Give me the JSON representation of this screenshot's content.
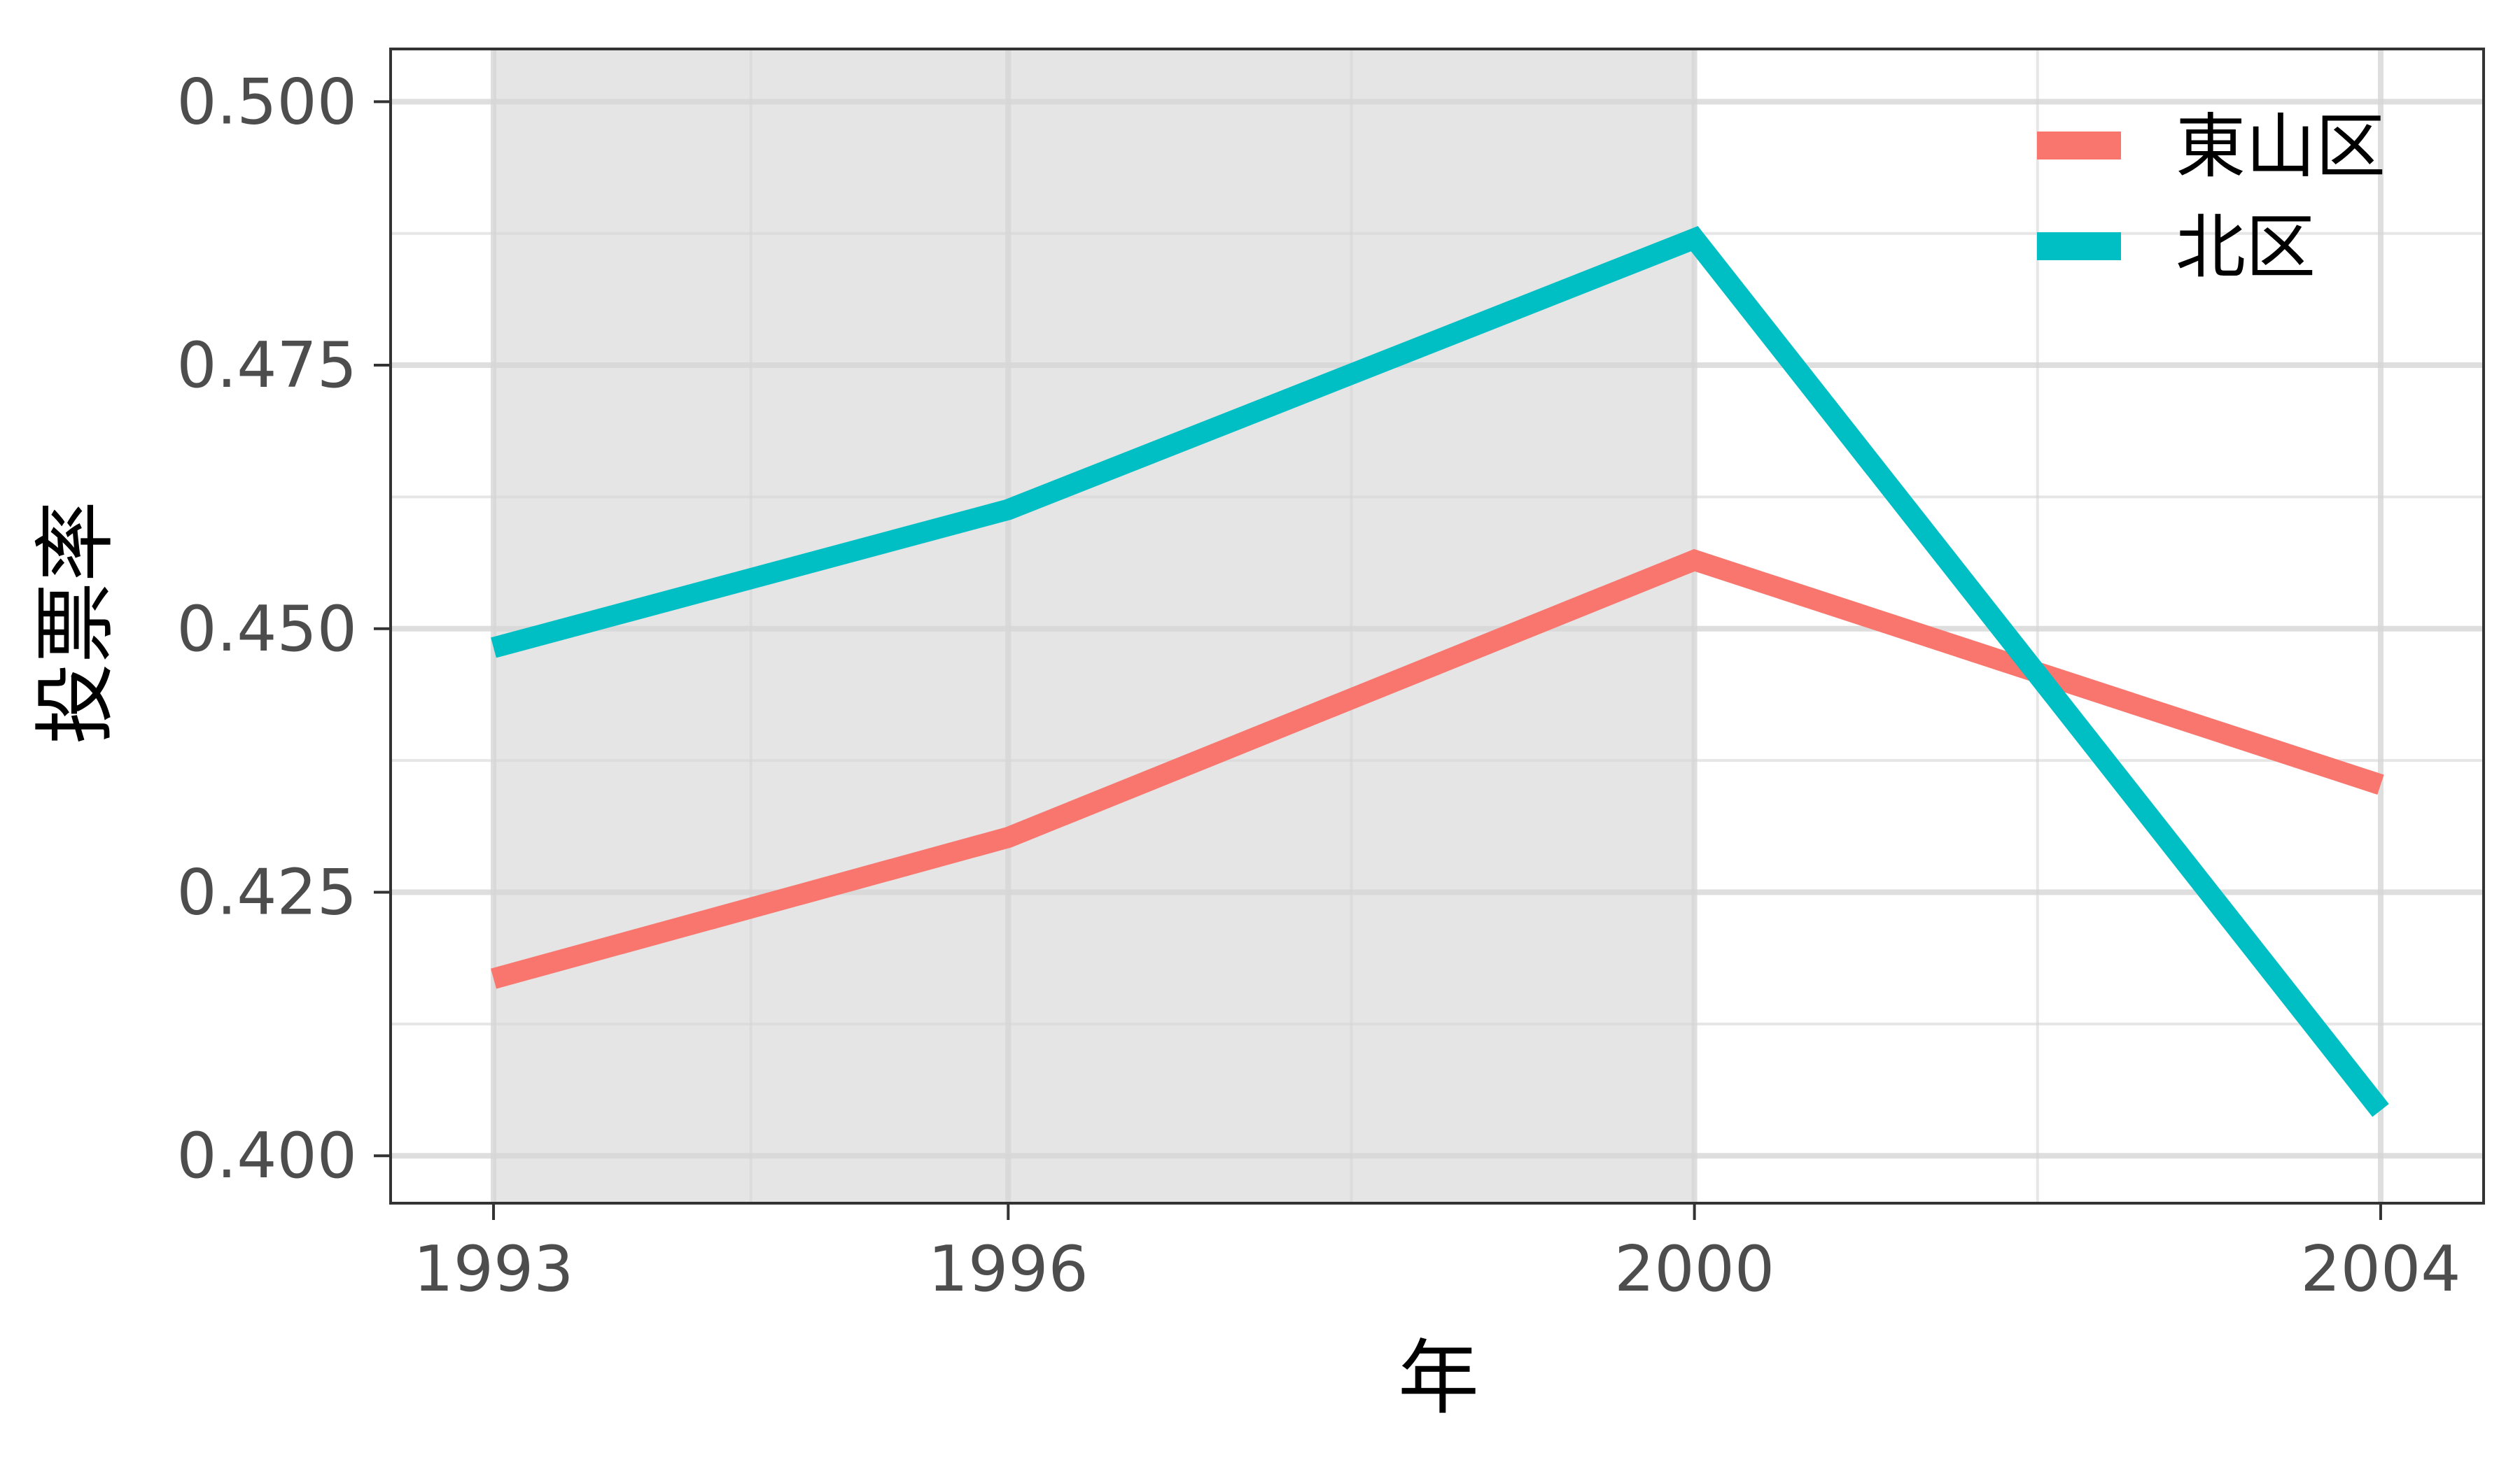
{
  "chart_data": {
    "type": "line",
    "title": "",
    "xlabel": "年",
    "ylabel": "投票率",
    "x": [
      1993,
      1996,
      2000,
      2004
    ],
    "xticks": [
      "1993",
      "1996",
      "2000",
      "2004"
    ],
    "xlim": [
      1992.4,
      2004.6
    ],
    "yticks": [
      "0.400",
      "0.425",
      "0.450",
      "0.475",
      "0.500"
    ],
    "ylim": [
      0.3955,
      0.505
    ],
    "shaded_region": {
      "x_start": 1993,
      "x_end": 2000,
      "color": "#e5e5e5"
    },
    "grid": true,
    "legend_position": "top-right",
    "series": [
      {
        "name": "東山区",
        "color": "#f8766d",
        "values": [
          0.4168,
          0.4302,
          0.4565,
          0.4352
        ]
      },
      {
        "name": "北区",
        "color": "#00bfc4",
        "values": [
          0.4482,
          0.4613,
          0.487,
          0.4043
        ]
      }
    ]
  }
}
